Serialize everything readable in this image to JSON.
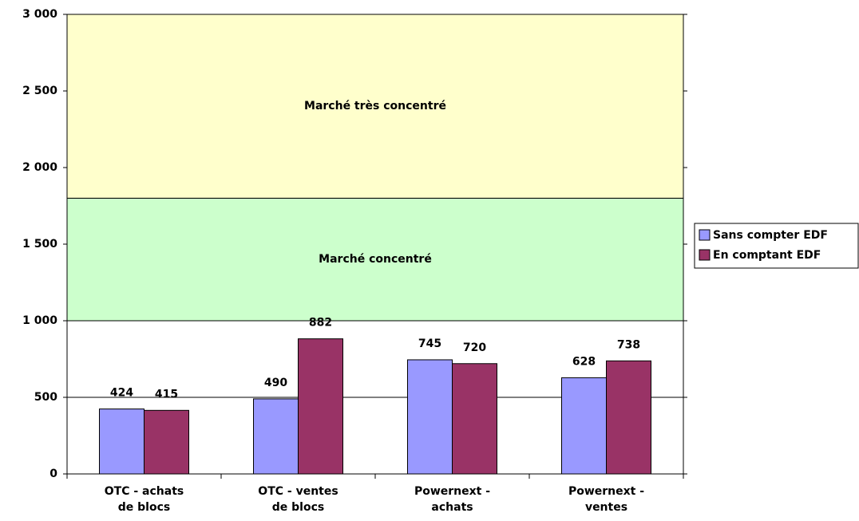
{
  "chart_data": {
    "type": "bar",
    "categories": [
      "OTC - achats de blocs",
      "OTC - ventes de blocs",
      "Powernext - achats",
      "Powernext - ventes"
    ],
    "series": [
      {
        "name": "Sans compter EDF",
        "color": "#9999ff",
        "values": [
          424,
          490,
          745,
          628
        ]
      },
      {
        "name": "En comptant EDF",
        "color": "#993366",
        "values": [
          415,
          882,
          720,
          738
        ]
      }
    ],
    "bands": [
      {
        "from": 1000,
        "to": 1800,
        "label": "Marché concentré",
        "color": "#ccffcc"
      },
      {
        "from": 1800,
        "to": 3000,
        "label": "Marché très concentré",
        "color": "#ffffcc"
      }
    ],
    "ylim": [
      0,
      3000
    ],
    "yticks": [
      0,
      500,
      {
        "value": 1000,
        "label": "1 000"
      },
      {
        "value": 1500,
        "label": "1 500"
      },
      {
        "value": 2000,
        "label": "2 000"
      },
      {
        "value": 2500,
        "label": "2 500"
      },
      {
        "value": 3000,
        "label": "3 000"
      }
    ],
    "grid": true,
    "legend": "right"
  }
}
